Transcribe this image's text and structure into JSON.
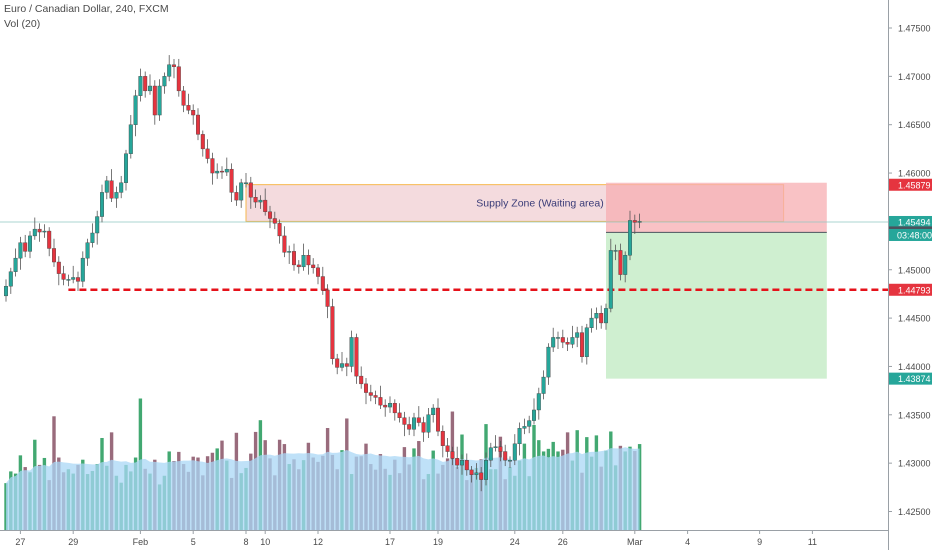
{
  "header": {
    "title": "Euro / Canadian Dollar, 240, FXCM",
    "indicator": "Vol (20)"
  },
  "chart_data": {
    "type": "candlestick",
    "ylim": [
      1.4209,
      1.4775
    ],
    "y_ticks": [
      "1.47500",
      "1.47000",
      "1.46500",
      "1.46000",
      "1.45500",
      "1.45000",
      "1.44500",
      "1.44000",
      "1.43500",
      "1.43000",
      "1.42500"
    ],
    "x_ticks": [
      {
        "label": "27",
        "bar": 3
      },
      {
        "label": "29",
        "bar": 14
      },
      {
        "label": "Feb",
        "bar": 28
      },
      {
        "label": "5",
        "bar": 39
      },
      {
        "label": "8",
        "bar": 50
      },
      {
        "label": "10",
        "bar": 54
      },
      {
        "label": "12",
        "bar": 65
      },
      {
        "label": "17",
        "bar": 80
      },
      {
        "label": "19",
        "bar": 90
      },
      {
        "label": "24",
        "bar": 106
      },
      {
        "label": "26",
        "bar": 116
      },
      {
        "label": "Mar",
        "bar": 131
      },
      {
        "label": "4",
        "bar": 142
      },
      {
        "label": "9",
        "bar": 157
      },
      {
        "label": "11",
        "bar": 168
      }
    ],
    "closes": [
      1.4483,
      1.4498,
      1.4512,
      1.4528,
      1.4519,
      1.4535,
      1.4542,
      1.4539,
      1.454,
      1.4522,
      1.4508,
      1.4496,
      1.449,
      1.449,
      1.4492,
      1.4488,
      1.4512,
      1.4528,
      1.4538,
      1.4555,
      1.458,
      1.4592,
      1.4574,
      1.458,
      1.459,
      1.462,
      1.465,
      1.468,
      1.47,
      1.4685,
      1.469,
      1.466,
      1.469,
      1.47,
      1.4712,
      1.471,
      1.4685,
      1.467,
      1.4665,
      1.466,
      1.464,
      1.4625,
      1.4615,
      1.46,
      1.4602,
      1.4601,
      1.4604,
      1.458,
      1.4572,
      1.459,
      1.459,
      1.4575,
      1.457,
      1.4572,
      1.456,
      1.4553,
      1.4548,
      1.4535,
      1.4518,
      1.4519,
      1.4505,
      1.4503,
      1.4515,
      1.4505,
      1.4502,
      1.4493,
      1.4479,
      1.4462,
      1.4408,
      1.4399,
      1.4403,
      1.44,
      1.443,
      1.439,
      1.4382,
      1.4373,
      1.437,
      1.4368,
      1.436,
      1.4358,
      1.4362,
      1.4352,
      1.4347,
      1.434,
      1.4335,
      1.4347,
      1.4342,
      1.4332,
      1.435,
      1.4357,
      1.4333,
      1.4318,
      1.4312,
      1.4305,
      1.4298,
      1.4303,
      1.4293,
      1.4288,
      1.429,
      1.4283,
      1.4303,
      1.4316,
      1.4317,
      1.4312,
      1.4303,
      1.4303,
      1.432,
      1.4336,
      1.4338,
      1.4344,
      1.4355,
      1.4372,
      1.4389,
      1.442,
      1.443,
      1.443,
      1.4425,
      1.4423,
      1.443,
      1.4435,
      1.441,
      1.444,
      1.445,
      1.4455,
      1.4445,
      1.446,
      1.452,
      1.452,
      1.4495,
      1.4515,
      1.4551,
      1.4549,
      1.455
    ],
    "volumes": [
      1080,
      1350,
      1300,
      1720,
      1450,
      1330,
      2080,
      1500,
      1660,
      1150,
      2620,
      1670,
      1330,
      1400,
      1300,
      1500,
      1620,
      1290,
      1360,
      1520,
      2120,
      1480,
      2250,
      1250,
      1090,
      1500,
      1350,
      1670,
      3030,
      1410,
      1300,
      1620,
      1050,
      1250,
      1810,
      1590,
      1800,
      1520,
      1340,
      1690,
      1670,
      1260,
      1700,
      1780,
      1880,
      2060,
      1600,
      1200,
      2240,
      1310,
      1430,
      1760,
      2260,
      2530,
      2070,
      1650,
      1260,
      2080,
      1980,
      1520,
      1630,
      1400,
      1610,
      2010,
      1670,
      1570,
      1710,
      2350,
      1730,
      1400,
      1840,
      2570,
      1290,
      1690,
      1700,
      1990,
      1520,
      1390,
      1750,
      1410,
      1270,
      1620,
      1310,
      1910,
      1510,
      1880,
      2050,
      1170,
      1290,
      1830,
      1300,
      1500,
      1650,
      2730,
      1450,
      2200,
      1150,
      1350,
      1430,
      1630,
      2440,
      1400,
      1400,
      2150,
      1170,
      1450,
      1250,
      1600,
      1990,
      1240,
      2420,
      2070,
      1810,
      1870,
      2030,
      1810,
      1850,
      2250,
      1600,
      2300,
      1320,
      2140,
      1690,
      2180,
      1460,
      1830,
      2270,
      1490,
      1940,
      1810,
      1920,
      1820,
      1980
    ],
    "price_lines": [
      {
        "value": 1.45879,
        "label": "1.45879",
        "color": "#e5343f"
      },
      {
        "value": 1.45494,
        "label": "1.45494",
        "color": "#26a69a"
      },
      {
        "value": 1.45386,
        "label": "1.45386",
        "color": "#4c525e"
      },
      {
        "value": 1.44793,
        "label": "1.44793",
        "color": "#e5343f"
      },
      {
        "value": 1.43874,
        "label": "1.43874",
        "color": "#26a69a"
      }
    ],
    "countdown": "03:48:00",
    "supply_zone": {
      "label": "Supply Zone (Waiting area)",
      "top": 1.4588,
      "bottom": 1.455
    },
    "position": {
      "entry": 1.45386,
      "stop": 1.459,
      "target": 1.43874
    },
    "dashed_level": 1.44793,
    "colors": {
      "up": "#26a69a",
      "down": "#e5343f",
      "vol_ma": "#a9d7f5",
      "dashed": "#e5111a",
      "zone_fill": "#f2d3d7",
      "zone_border": "#f5a623",
      "zone_text": "#3a3c78"
    }
  }
}
